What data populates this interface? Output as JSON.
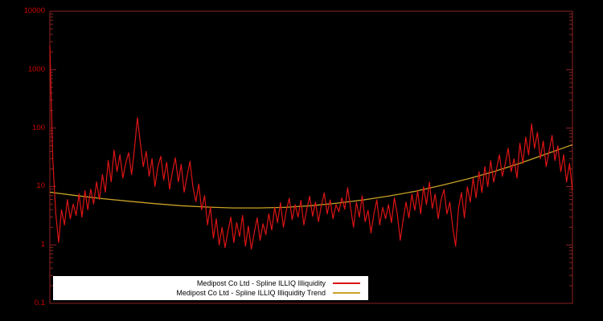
{
  "chart_data": {
    "type": "line",
    "title": "",
    "xlabel": "",
    "ylabel": "",
    "y_scale": "log10",
    "ylim": [
      0.1,
      10000
    ],
    "grid": false,
    "background_color": "#000000",
    "axis_border_color": "#8b2222",
    "tick_label_color": "#cc0000",
    "ytick_labels": [
      "10000",
      "1000",
      "100",
      "10",
      "1",
      "0.1"
    ],
    "ytick_values": [
      10000,
      1000,
      100,
      10,
      1,
      0.1
    ],
    "legend": {
      "position": "bottom-center",
      "background": "#ffffff",
      "text_color": "#000000"
    },
    "series": [
      {
        "name": "Medipost Co Ltd - Spline ILLIQ Illiquidity",
        "color": "#dd1414",
        "values": [
          2600,
          30,
          3.5,
          1.1,
          4.0,
          2.2,
          6.0,
          2.8,
          5.0,
          3.2,
          7.5,
          3.0,
          8.5,
          4.0,
          9.0,
          5.0,
          12,
          6.0,
          16,
          8.0,
          28,
          12,
          42,
          18,
          35,
          14,
          25,
          38,
          16,
          45,
          150,
          55,
          22,
          40,
          15,
          30,
          10,
          22,
          33,
          13,
          26,
          9,
          18,
          31,
          12,
          24,
          8,
          15,
          27,
          10,
          5.5,
          11,
          4.0,
          7.0,
          2.2,
          4.5,
          1.3,
          2.8,
          1.0,
          2.0,
          0.9,
          1.7,
          3.0,
          1.1,
          2.4,
          1.4,
          3.2,
          0.95,
          2.1,
          0.85,
          1.6,
          2.9,
          1.2,
          2.3,
          1.5,
          3.4,
          1.8,
          4.4,
          2.4,
          5.3,
          2.0,
          3.9,
          6.3,
          2.7,
          4.9,
          3.0,
          5.8,
          2.2,
          4.1,
          6.8,
          3.1,
          5.4,
          2.5,
          4.7,
          7.8,
          3.4,
          5.9,
          2.8,
          4.9,
          3.7,
          6.4,
          4.1,
          9.5,
          4.4,
          2.0,
          5.4,
          3.0,
          6.9,
          2.5,
          3.9,
          1.6,
          3.4,
          5.9,
          2.2,
          4.4,
          2.8,
          4.9,
          2.4,
          6.4,
          3.4,
          1.2,
          2.7,
          5.4,
          2.9,
          7.4,
          3.9,
          8.4,
          3.4,
          9.9,
          4.9,
          11.9,
          4.2,
          7.4,
          2.8,
          5.9,
          8.9,
          3.4,
          5.4,
          2.0,
          0.95,
          4.4,
          7.9,
          2.9,
          9.9,
          5.4,
          13.9,
          6.4,
          17.9,
          7.9,
          21.9,
          9.9,
          27.9,
          11.9,
          19.9,
          34.9,
          14.9,
          24.9,
          44.9,
          17.9,
          29.9,
          13.9,
          54.9,
          24.9,
          69.9,
          34.9,
          118,
          44.9,
          84.9,
          29.9,
          59.9,
          21.9,
          39.9,
          74.9,
          27.9,
          49.9,
          17.9,
          34.9,
          11.9,
          24.9,
          8.5
        ]
      },
      {
        "name": "Medipost Co Ltd - Spline ILLIQ Illiquidity Trend",
        "color": "#c9a227",
        "x": [
          0,
          0.05,
          0.1,
          0.15,
          0.2,
          0.25,
          0.3,
          0.35,
          0.4,
          0.45,
          0.5,
          0.55,
          0.6,
          0.65,
          0.7,
          0.75,
          0.8,
          0.85,
          0.9,
          0.95,
          1.0
        ],
        "values": [
          8.0,
          7.0,
          6.2,
          5.6,
          5.1,
          4.7,
          4.45,
          4.3,
          4.3,
          4.4,
          4.7,
          5.2,
          5.9,
          6.9,
          8.3,
          10.5,
          13.5,
          18,
          25,
          36,
          52
        ]
      }
    ]
  }
}
